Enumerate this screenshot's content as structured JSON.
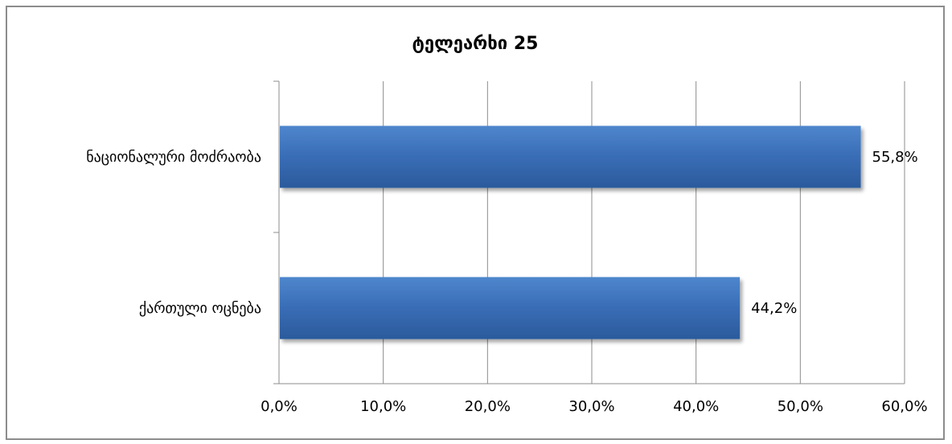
{
  "chart_data": {
    "type": "bar",
    "orientation": "horizontal",
    "title": "ტელეარხი 25",
    "categories": [
      "ნაციონალური მოძრაობა",
      "ქართული ოცნება"
    ],
    "values": [
      55.8,
      44.2
    ],
    "data_labels": [
      "55,8%",
      "44,2%"
    ],
    "xlim": [
      0,
      60
    ],
    "x_ticks": [
      0,
      10,
      20,
      30,
      40,
      50,
      60
    ],
    "x_tick_labels": [
      "0,0%",
      "10,0%",
      "20,0%",
      "30,0%",
      "40,0%",
      "50,0%",
      "60,0%"
    ],
    "xlabel": "",
    "ylabel": "",
    "grid": "vertical",
    "legend": "none",
    "bar_color": "#3a6fb8",
    "bar_color_light": "#4f86cc",
    "bar_color_dark": "#2b5a9c",
    "gridline_color": "#8c8c8c",
    "frame_color": "#8c8c8c"
  }
}
